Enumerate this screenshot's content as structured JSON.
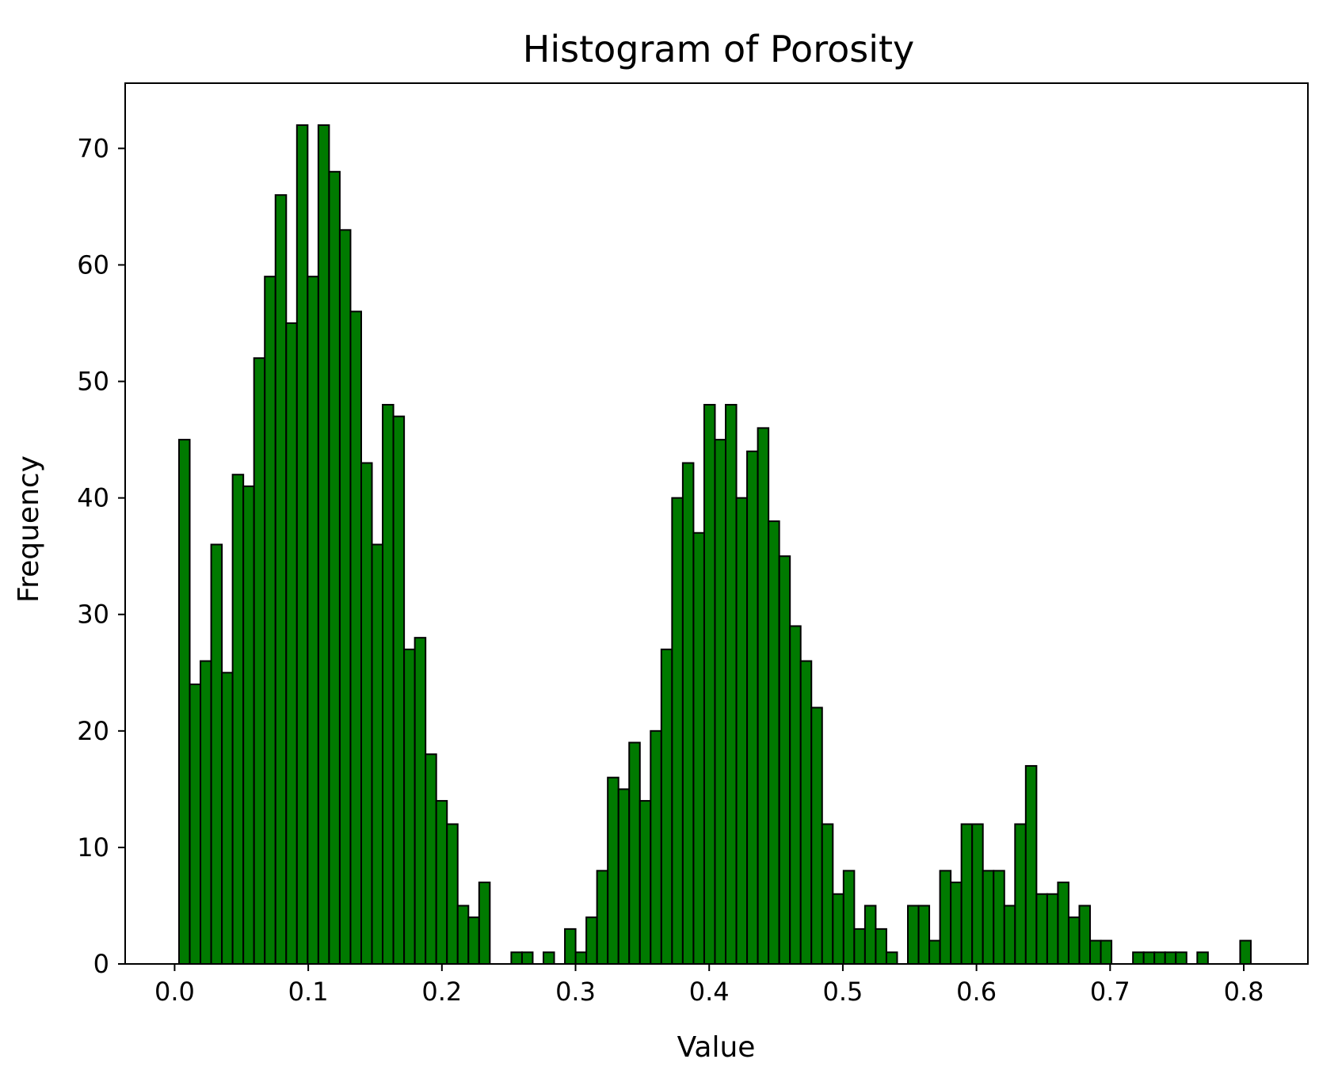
{
  "chart_data": {
    "type": "bar",
    "title": "Histogram of Porosity",
    "xlabel": "Value",
    "ylabel": "Frequency",
    "xlim": [
      -0.037,
      0.848
    ],
    "ylim": [
      0,
      75.6
    ],
    "x_ticks": [
      "0.0",
      "0.1",
      "0.2",
      "0.3",
      "0.4",
      "0.5",
      "0.6",
      "0.7",
      "0.8"
    ],
    "x_tick_values": [
      0.0,
      0.1,
      0.2,
      0.3,
      0.4,
      0.5,
      0.6,
      0.7,
      0.8
    ],
    "y_ticks": [
      "0",
      "10",
      "20",
      "30",
      "40",
      "50",
      "60",
      "70"
    ],
    "y_tick_values": [
      0,
      10,
      20,
      30,
      40,
      50,
      60,
      70
    ],
    "bin_start": 0.0033,
    "bin_width": 0.00802,
    "values": [
      45,
      24,
      26,
      36,
      25,
      42,
      41,
      52,
      59,
      66,
      55,
      72,
      59,
      72,
      68,
      63,
      56,
      43,
      36,
      48,
      47,
      27,
      28,
      18,
      14,
      12,
      5,
      4,
      7,
      0,
      0,
      1,
      1,
      0,
      1,
      0,
      3,
      1,
      4,
      8,
      16,
      15,
      19,
      14,
      20,
      27,
      40,
      43,
      37,
      48,
      45,
      48,
      40,
      44,
      46,
      38,
      35,
      29,
      26,
      22,
      12,
      6,
      8,
      3,
      5,
      3,
      1,
      0,
      5,
      5,
      2,
      8,
      7,
      12,
      12,
      8,
      8,
      5,
      12,
      17,
      6,
      6,
      7,
      4,
      5,
      2,
      2,
      0,
      0,
      1,
      1,
      1,
      1,
      1,
      0,
      1,
      0,
      0,
      0,
      2
    ],
    "bar_color": "#007a00",
    "edge_color": "#000000",
    "grid": false
  }
}
